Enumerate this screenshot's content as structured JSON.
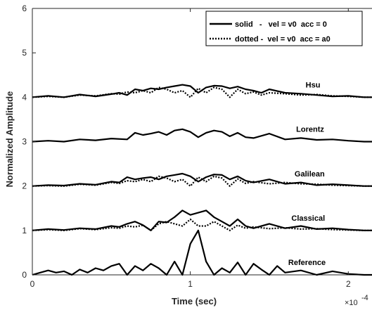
{
  "chart_data": {
    "type": "line",
    "xlabel": "Time (sec)",
    "ylabel": "Normalized Amplitude",
    "x_exponent_label": "×10",
    "x_exponent_power": "-4",
    "xlim": [
      0,
      2.15
    ],
    "ylim": [
      0,
      6
    ],
    "xticks": [
      {
        "value": 0,
        "label": "0"
      },
      {
        "value": 1,
        "label": "1"
      },
      {
        "value": 2,
        "label": "2"
      }
    ],
    "yticks": [
      {
        "value": 0,
        "label": "0"
      },
      {
        "value": 1,
        "label": "1"
      },
      {
        "value": 2,
        "label": "2"
      },
      {
        "value": 3,
        "label": "3"
      },
      {
        "value": 4,
        "label": "4"
      },
      {
        "value": 5,
        "label": "5"
      },
      {
        "value": 6,
        "label": "6"
      }
    ],
    "grid": false,
    "legend": {
      "position": "top-right",
      "entries": [
        {
          "label": "solid   -   vel = v0  acc = 0",
          "style": "solid"
        },
        {
          "label": "dotted -  vel = v0  acc = a0",
          "style": "dotted"
        }
      ]
    },
    "series_labels": [
      {
        "text": "Hsu",
        "x": 1.73,
        "y": 4.22
      },
      {
        "text": "Lorentz",
        "x": 1.67,
        "y": 3.22
      },
      {
        "text": "Galilean",
        "x": 1.66,
        "y": 2.22
      },
      {
        "text": "Classical",
        "x": 1.64,
        "y": 1.22
      },
      {
        "text": "Reference",
        "x": 1.62,
        "y": 0.22
      }
    ],
    "series": [
      {
        "style": "solid",
        "x": [
          0,
          0.1,
          0.2,
          0.3,
          0.4,
          0.5,
          0.55,
          0.6,
          0.65,
          0.7,
          0.75,
          0.8,
          0.85,
          0.9,
          0.95,
          1.0,
          1.05,
          1.1,
          1.15,
          1.2,
          1.25,
          1.3,
          1.35,
          1.4,
          1.45,
          1.5,
          1.6,
          1.7,
          1.8,
          1.9,
          2.0,
          2.1,
          2.15
        ],
        "y": [
          4.0,
          4.03,
          4.0,
          4.06,
          4.02,
          4.07,
          4.1,
          4.05,
          4.18,
          4.15,
          4.2,
          4.18,
          4.22,
          4.25,
          4.28,
          4.25,
          4.1,
          4.22,
          4.26,
          4.25,
          4.2,
          4.24,
          4.18,
          4.15,
          4.1,
          4.18,
          4.1,
          4.08,
          4.05,
          4.02,
          4.03,
          4.0,
          4.0
        ]
      },
      {
        "style": "dotted",
        "x": [
          0,
          0.1,
          0.2,
          0.3,
          0.4,
          0.5,
          0.55,
          0.6,
          0.65,
          0.7,
          0.75,
          0.8,
          0.85,
          0.9,
          0.95,
          1.0,
          1.05,
          1.1,
          1.15,
          1.2,
          1.25,
          1.3,
          1.35,
          1.4,
          1.45,
          1.5,
          1.6,
          1.7,
          1.8,
          1.9,
          2.0,
          2.1,
          2.15
        ],
        "y": [
          4.0,
          4.02,
          4.0,
          4.05,
          4.03,
          4.08,
          4.07,
          4.12,
          4.1,
          4.15,
          4.1,
          4.22,
          4.18,
          4.1,
          4.15,
          4.0,
          4.2,
          4.1,
          4.22,
          4.18,
          4.0,
          4.18,
          4.08,
          4.12,
          4.05,
          4.1,
          4.08,
          4.05,
          4.06,
          4.03,
          4.02,
          4.0,
          4.0
        ]
      },
      {
        "style": "solid",
        "x": [
          0,
          0.1,
          0.2,
          0.3,
          0.4,
          0.5,
          0.6,
          0.65,
          0.7,
          0.75,
          0.8,
          0.85,
          0.9,
          0.95,
          1.0,
          1.05,
          1.1,
          1.15,
          1.2,
          1.25,
          1.3,
          1.35,
          1.4,
          1.5,
          1.6,
          1.7,
          1.8,
          1.9,
          2.0,
          2.1,
          2.15
        ],
        "y": [
          3.0,
          3.02,
          3.0,
          3.05,
          3.03,
          3.07,
          3.05,
          3.2,
          3.15,
          3.18,
          3.22,
          3.15,
          3.25,
          3.28,
          3.22,
          3.1,
          3.2,
          3.25,
          3.22,
          3.12,
          3.2,
          3.1,
          3.08,
          3.18,
          3.05,
          3.08,
          3.04,
          3.05,
          3.02,
          3.0,
          3.0
        ]
      },
      {
        "style": "solid",
        "x": [
          0,
          0.1,
          0.2,
          0.3,
          0.4,
          0.5,
          0.55,
          0.6,
          0.65,
          0.7,
          0.75,
          0.8,
          0.85,
          0.9,
          0.95,
          1.0,
          1.05,
          1.1,
          1.15,
          1.2,
          1.25,
          1.3,
          1.35,
          1.4,
          1.5,
          1.6,
          1.7,
          1.8,
          1.9,
          2.0,
          2.1,
          2.15
        ],
        "y": [
          2.0,
          2.02,
          2.01,
          2.05,
          2.03,
          2.1,
          2.08,
          2.2,
          2.15,
          2.18,
          2.2,
          2.15,
          2.22,
          2.25,
          2.28,
          2.22,
          2.1,
          2.2,
          2.26,
          2.25,
          2.15,
          2.22,
          2.12,
          2.08,
          2.15,
          2.05,
          2.08,
          2.02,
          2.04,
          2.02,
          2.0,
          2.0
        ]
      },
      {
        "style": "dotted",
        "x": [
          0,
          0.1,
          0.2,
          0.3,
          0.4,
          0.5,
          0.55,
          0.6,
          0.65,
          0.7,
          0.75,
          0.8,
          0.85,
          0.9,
          0.95,
          1.0,
          1.05,
          1.1,
          1.15,
          1.2,
          1.25,
          1.3,
          1.35,
          1.4,
          1.5,
          1.6,
          1.7,
          1.8,
          1.9,
          2.0,
          2.1,
          2.15
        ],
        "y": [
          2.0,
          2.01,
          2.0,
          2.04,
          2.02,
          2.08,
          2.06,
          2.12,
          2.1,
          2.15,
          2.1,
          2.22,
          2.18,
          2.1,
          2.15,
          2.0,
          2.2,
          2.1,
          2.22,
          2.18,
          2.0,
          2.16,
          2.06,
          2.1,
          2.05,
          2.08,
          2.05,
          2.04,
          2.02,
          2.01,
          2.0,
          2.0
        ]
      },
      {
        "style": "solid",
        "x": [
          0,
          0.1,
          0.2,
          0.3,
          0.4,
          0.5,
          0.55,
          0.6,
          0.65,
          0.7,
          0.75,
          0.8,
          0.85,
          0.9,
          0.95,
          1.0,
          1.05,
          1.1,
          1.15,
          1.2,
          1.25,
          1.3,
          1.35,
          1.4,
          1.5,
          1.6,
          1.7,
          1.8,
          1.9,
          2.0,
          2.1,
          2.15
        ],
        "y": [
          1.0,
          1.03,
          1.01,
          1.05,
          1.03,
          1.1,
          1.08,
          1.15,
          1.2,
          1.12,
          1.0,
          1.2,
          1.18,
          1.3,
          1.45,
          1.35,
          1.4,
          1.45,
          1.3,
          1.2,
          1.1,
          1.25,
          1.1,
          1.05,
          1.15,
          1.05,
          1.1,
          1.03,
          1.05,
          1.02,
          1.0,
          1.0
        ]
      },
      {
        "style": "dotted",
        "x": [
          0,
          0.1,
          0.2,
          0.3,
          0.4,
          0.5,
          0.55,
          0.6,
          0.65,
          0.7,
          0.75,
          0.8,
          0.85,
          0.9,
          0.95,
          1.0,
          1.05,
          1.1,
          1.15,
          1.2,
          1.25,
          1.3,
          1.35,
          1.4,
          1.5,
          1.6,
          1.7,
          1.8,
          1.9,
          2.0,
          2.1,
          2.15
        ],
        "y": [
          1.0,
          1.02,
          1.0,
          1.04,
          1.02,
          1.06,
          1.05,
          1.1,
          1.08,
          1.12,
          1.0,
          1.15,
          1.2,
          1.15,
          1.1,
          1.25,
          1.1,
          1.1,
          1.2,
          1.1,
          1.0,
          1.12,
          1.05,
          1.08,
          1.04,
          1.06,
          1.03,
          1.04,
          1.02,
          1.01,
          1.0,
          1.0
        ]
      },
      {
        "style": "solid",
        "x": [
          0,
          0.05,
          0.1,
          0.15,
          0.2,
          0.25,
          0.3,
          0.35,
          0.4,
          0.45,
          0.5,
          0.55,
          0.6,
          0.65,
          0.7,
          0.75,
          0.8,
          0.85,
          0.9,
          0.95,
          1.0,
          1.05,
          1.1,
          1.15,
          1.2,
          1.25,
          1.3,
          1.35,
          1.4,
          1.45,
          1.5,
          1.55,
          1.6,
          1.7,
          1.8,
          1.9,
          2.0,
          2.1,
          2.15
        ],
        "y": [
          0.0,
          0.05,
          0.1,
          0.05,
          0.08,
          0.0,
          0.12,
          0.05,
          0.15,
          0.1,
          0.2,
          0.25,
          0.0,
          0.2,
          0.1,
          0.25,
          0.15,
          0.0,
          0.3,
          0.0,
          0.7,
          1.0,
          0.3,
          0.0,
          0.15,
          0.05,
          0.28,
          0.0,
          0.25,
          0.12,
          0.0,
          0.2,
          0.05,
          0.1,
          0.0,
          0.08,
          0.02,
          0.0,
          0.0
        ]
      }
    ]
  }
}
